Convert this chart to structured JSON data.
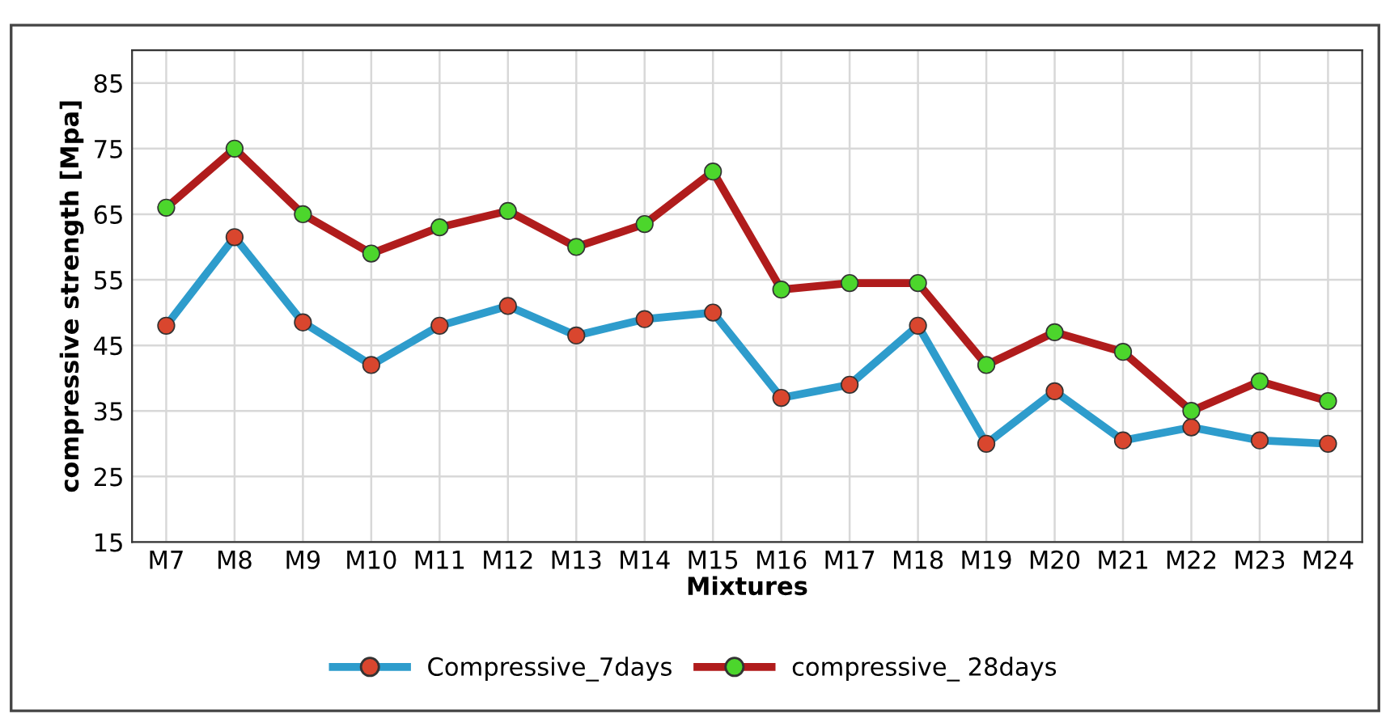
{
  "chart_data": {
    "type": "line",
    "xlabel": "Mixtures",
    "ylabel": "compressive strength [Mpa]",
    "categories": [
      "M7",
      "M8",
      "M9",
      "M10",
      "M11",
      "M12",
      "M13",
      "M14",
      "M15",
      "M16",
      "M17",
      "M18",
      "M19",
      "M20",
      "M21",
      "M22",
      "M23",
      "M24"
    ],
    "series": [
      {
        "name": "Compressive_7days",
        "color": "#2e9ccc",
        "colors": [
          "#d9462e",
          "#d9462e",
          "#d9462e",
          "#d9462e",
          "#d9462e",
          "#d9462e",
          "#d9462e",
          "#d9462e",
          "#d9462e",
          "#d9462e",
          "#d9462e",
          "#d9462e",
          "#d9462e",
          "#d9462e",
          "#d9462e",
          "#d9462e",
          "#d9462e",
          "#d9462e"
        ],
        "values": [
          48,
          61.5,
          48.5,
          42,
          48,
          51,
          46.5,
          49,
          50,
          37,
          39,
          48,
          30,
          38,
          30.5,
          32.5,
          30.5,
          30
        ]
      },
      {
        "name": "compressive_ 28days",
        "color": "#b01c1c",
        "colors": [
          "#4cd62c",
          "#4cd62c",
          "#4cd62c",
          "#4cd62c",
          "#4cd62c",
          "#4cd62c",
          "#4cd62c",
          "#4cd62c",
          "#4cd62c",
          "#4cd62c",
          "#4cd62c",
          "#4cd62c",
          "#4cd62c",
          "#4cd62c",
          "#4cd62c",
          "#4cd62c",
          "#4cd62c",
          "#4cd62c"
        ],
        "values": [
          66,
          75,
          65,
          59,
          63,
          65.5,
          60,
          63.5,
          71.5,
          53.5,
          54.5,
          54.5,
          42,
          47,
          44,
          35,
          39.5,
          36.5
        ]
      }
    ],
    "ylim": [
      15,
      90
    ],
    "yticks": [
      15,
      25,
      35,
      45,
      55,
      65,
      75,
      85
    ],
    "grid": true,
    "legend": "bottom",
    "marker": "circle",
    "line_style": "solid"
  }
}
